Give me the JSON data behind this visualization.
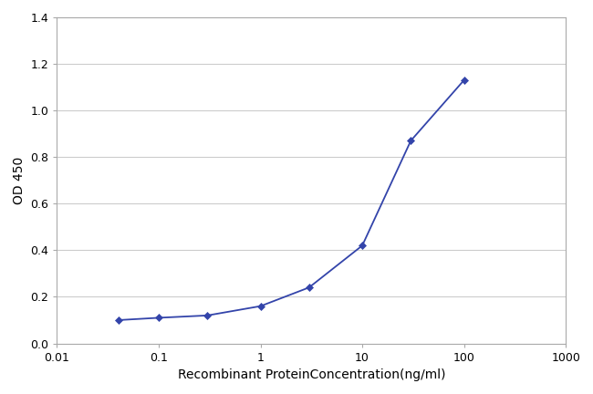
{
  "x_values": [
    0.04,
    0.1,
    0.3,
    1.0,
    3.0,
    10.0,
    30.0,
    100.0
  ],
  "y_values": [
    0.1,
    0.11,
    0.12,
    0.16,
    0.24,
    0.42,
    0.87,
    1.13
  ],
  "line_color": "#3344aa",
  "marker_color": "#3344aa",
  "marker_style": "D",
  "marker_size": 4,
  "line_width": 1.3,
  "xlabel": "Recombinant ProteinConcentration(ng/ml)",
  "ylabel": "OD 450",
  "xlim_log": [
    0.01,
    1000
  ],
  "ylim": [
    0,
    1.4
  ],
  "yticks": [
    0,
    0.2,
    0.4,
    0.6,
    0.8,
    1.0,
    1.2,
    1.4
  ],
  "xticks": [
    0.01,
    0.1,
    1,
    10,
    100,
    1000
  ],
  "xtick_labels": [
    "0.01",
    "0.1",
    "1",
    "10",
    "100",
    "1000"
  ],
  "fig_bg_color": "#ffffff",
  "plot_bg_color": "#ffffff",
  "grid_color": "#cccccc",
  "spine_color": "#aaaaaa",
  "xlabel_fontsize": 10,
  "ylabel_fontsize": 10,
  "tick_fontsize": 9,
  "fig_width": 6.5,
  "fig_height": 4.32,
  "dpi": 100
}
